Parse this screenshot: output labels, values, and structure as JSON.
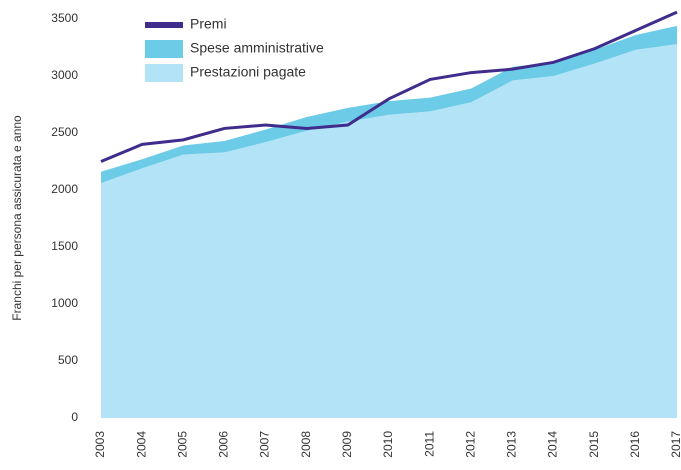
{
  "chart_data": {
    "type": "area",
    "stacked": true,
    "y_label": "Franchi per persona assicurata e anno",
    "categories": [
      "2003",
      "2004",
      "2005",
      "2006",
      "2007",
      "2008",
      "2009",
      "2010",
      "2011",
      "2012",
      "2013",
      "2014",
      "2015",
      "2016",
      "2017"
    ],
    "series": [
      {
        "name": "Premi",
        "type": "line",
        "color": "#3f2c8c",
        "values": [
          2250,
          2400,
          2440,
          2540,
          2570,
          2540,
          2570,
          2800,
          2970,
          3030,
          3060,
          3120,
          3240,
          3400,
          3560
        ]
      },
      {
        "name": "Spese amministrative",
        "type": "area",
        "color": "#6ccbe6",
        "values": [
          100,
          80,
          80,
          100,
          110,
          120,
          120,
          120,
          120,
          120,
          120,
          120,
          120,
          130,
          160
        ]
      },
      {
        "name": "Prestazioni pagate",
        "type": "area",
        "color": "#b3e3f7",
        "values": [
          2060,
          2190,
          2310,
          2330,
          2420,
          2520,
          2600,
          2660,
          2690,
          2770,
          2960,
          3000,
          3110,
          3230,
          3280
        ]
      }
    ],
    "ylim": [
      0,
      3500
    ],
    "yticks": [
      0,
      500,
      1000,
      1500,
      2000,
      2500,
      3000,
      3500
    ],
    "grid": false
  }
}
